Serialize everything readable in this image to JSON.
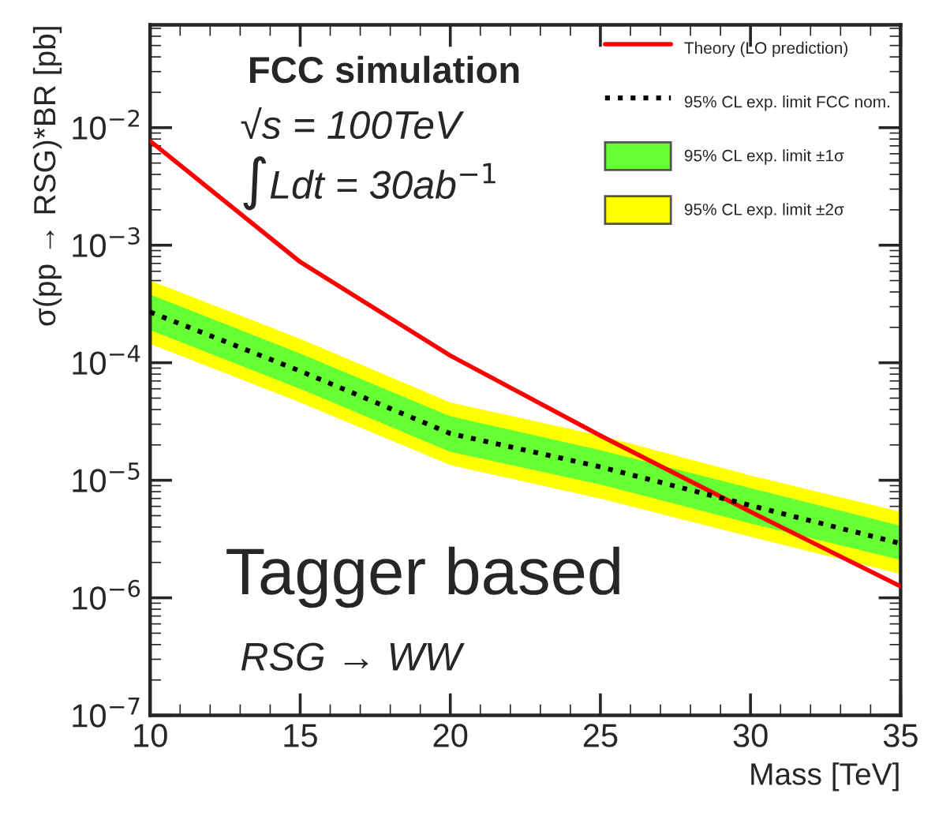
{
  "chart_data": {
    "type": "line",
    "xlabel": "Mass [TeV]",
    "ylabel": "σ(pp → RSG)*BR [pb]",
    "x": [
      10,
      15,
      20,
      25,
      30,
      35
    ],
    "series": [
      {
        "name": "Theory (LO prediction)",
        "color": "#ff0000",
        "line_style": "solid",
        "values": [
          0.0077,
          0.00072,
          0.000115,
          2.4e-05,
          5.4e-06,
          1.25e-06
        ]
      },
      {
        "name": "95% CL exp. limit FCC nom.",
        "color": "#000000",
        "line_style": "dotted",
        "values": [
          0.00027,
          8.5e-05,
          2.5e-05,
          1.3e-05,
          6.1e-06,
          2.9e-06
        ]
      },
      {
        "name": "95% CL exp. limit ±1σ",
        "type": "area",
        "color": "#66ff33",
        "values": [
          null,
          null,
          null,
          null,
          null,
          null
        ],
        "lower": [
          0.00019,
          6e-05,
          1.75e-05,
          9.2e-06,
          4.3e-06,
          2.1e-06
        ],
        "upper": [
          0.00038,
          0.00012,
          3.5e-05,
          1.8e-05,
          8.6e-06,
          4.1e-06
        ]
      },
      {
        "name": "95% CL exp. limit ±2σ",
        "type": "area",
        "color": "#ffff00",
        "values": [
          null,
          null,
          null,
          null,
          null,
          null
        ],
        "lower": [
          0.000145,
          4.6e-05,
          1.35e-05,
          7e-06,
          3.3e-06,
          1.6e-06
        ],
        "upper": [
          0.0005,
          0.00016,
          4.6e-05,
          2.4e-05,
          1.1e-05,
          5.4e-06
        ]
      }
    ],
    "log": "y",
    "xlim": [
      10,
      35
    ],
    "xticks": [
      10,
      15,
      20,
      25,
      30,
      35
    ],
    "ylim": [
      1e-07,
      0.075
    ],
    "yticks": [
      {
        "value": 1e-07,
        "label": "10$^{−7}$"
      },
      {
        "value": 1e-06,
        "label": "10$^{−6}$"
      },
      {
        "value": 1e-05,
        "label": "10$^{−5}$"
      },
      {
        "value": 0.0001,
        "label": "10$^{−4}$"
      },
      {
        "value": 0.001,
        "label": "10$^{−3}$"
      },
      {
        "value": 0.01,
        "label": "10$^{−2}$"
      }
    ],
    "legend": "top right",
    "grid": false,
    "annotations": [
      "FCC simulation",
      "√s = 100TeV",
      "∫Ldt = 30ab$^{−1}$",
      "Tagger based",
      "RSG → WW"
    ]
  }
}
